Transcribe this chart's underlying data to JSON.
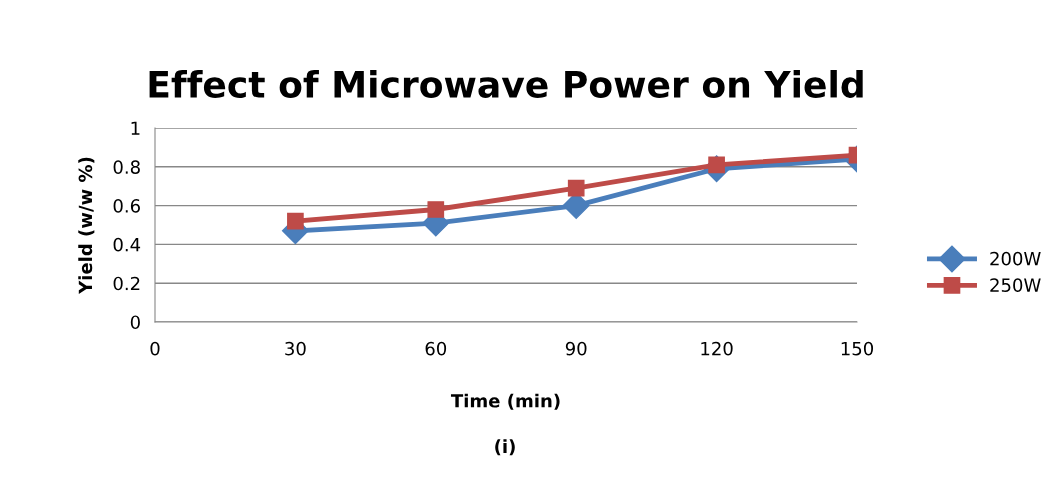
{
  "chart_data": {
    "type": "line",
    "title": "Effect of Microwave Power on Yield",
    "xlabel": "Time (min)",
    "ylabel": "Yield (w/w %)",
    "annotations": [
      "(i)"
    ],
    "x": [
      30,
      60,
      90,
      120,
      150
    ],
    "series": [
      {
        "name": "200W",
        "color": "#4a7ebb",
        "marker": "diamond",
        "values": [
          0.47,
          0.51,
          0.6,
          0.79,
          0.84
        ]
      },
      {
        "name": "250W",
        "color": "#be4b48",
        "marker": "square",
        "values": [
          0.52,
          0.58,
          0.69,
          0.81,
          0.86
        ]
      }
    ],
    "xlim": [
      0,
      150
    ],
    "xticks": [
      0,
      30,
      60,
      90,
      120,
      150
    ],
    "ylim": [
      0,
      1
    ],
    "yticks": [
      0,
      0.2,
      0.4,
      0.6,
      0.8,
      1
    ],
    "grid": "y",
    "legend": "right",
    "line_style": "solid"
  }
}
